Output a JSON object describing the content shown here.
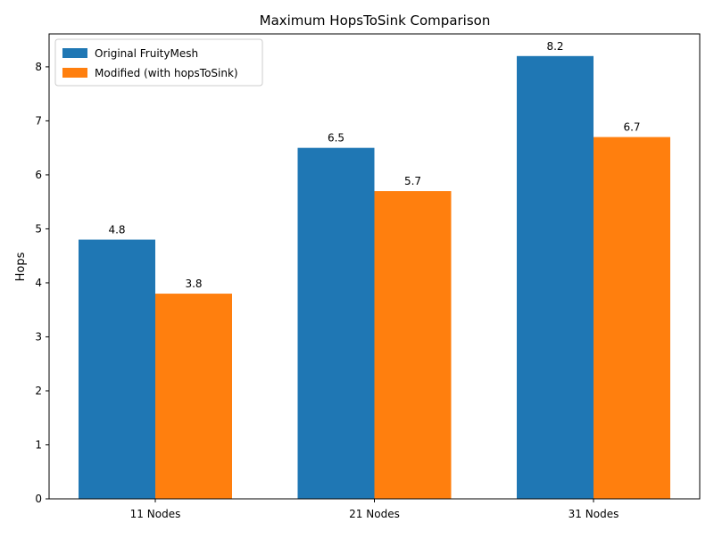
{
  "chart_data": {
    "type": "bar",
    "title": "Maximum HopsToSink Comparison",
    "xlabel": "",
    "ylabel": "Hops",
    "categories": [
      "11 Nodes",
      "21 Nodes",
      "31 Nodes"
    ],
    "series": [
      {
        "name": "Original FruityMesh",
        "values": [
          4.8,
          6.5,
          8.2
        ],
        "color": "#1f77b4"
      },
      {
        "name": "Modified (with hopsToSink)",
        "values": [
          3.8,
          5.7,
          6.7
        ],
        "color": "#ff7f0e"
      }
    ],
    "ylim": [
      0,
      8.61
    ],
    "yticks": [
      0,
      1,
      2,
      3,
      4,
      5,
      6,
      7,
      8
    ],
    "grid": false,
    "legend_position": "top-left",
    "data_labels": true
  }
}
